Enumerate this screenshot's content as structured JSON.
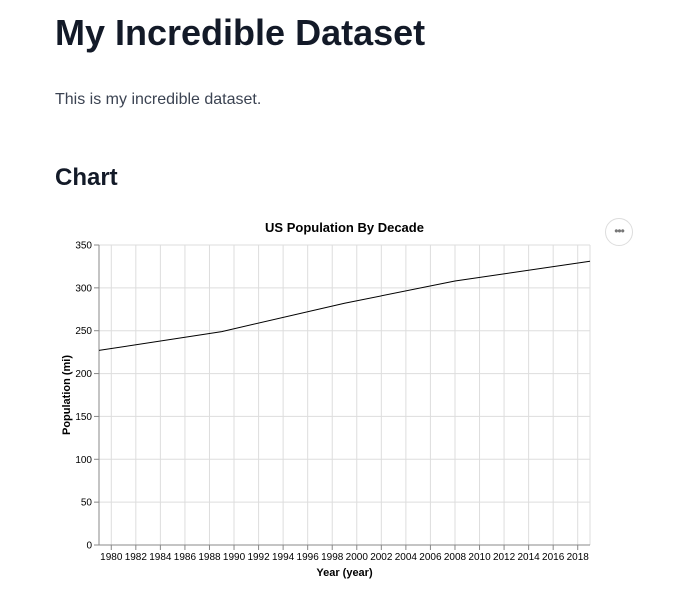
{
  "page": {
    "title": "My Incredible Dataset",
    "description": "This is my incredible dataset.",
    "section_title": "Chart"
  },
  "actions_menu": {
    "icon": "ellipsis-icon",
    "label": "•••"
  },
  "chart_data": {
    "type": "line",
    "title": "US Population By Decade",
    "xlabel": "Year (year)",
    "ylabel": "Population (mi)",
    "xlim": [
      1979,
      2019
    ],
    "ylim": [
      0,
      350
    ],
    "x_ticks": [
      1980,
      1982,
      1984,
      1986,
      1988,
      1990,
      1992,
      1994,
      1996,
      1998,
      2000,
      2002,
      2004,
      2006,
      2008,
      2010,
      2012,
      2014,
      2016,
      2018
    ],
    "y_ticks": [
      0,
      50,
      100,
      150,
      200,
      250,
      300,
      350
    ],
    "grid": true,
    "line_color": "#000000",
    "x": [
      1979,
      1989,
      1999,
      2008,
      2019
    ],
    "values": [
      227,
      249,
      282,
      308,
      331
    ]
  }
}
